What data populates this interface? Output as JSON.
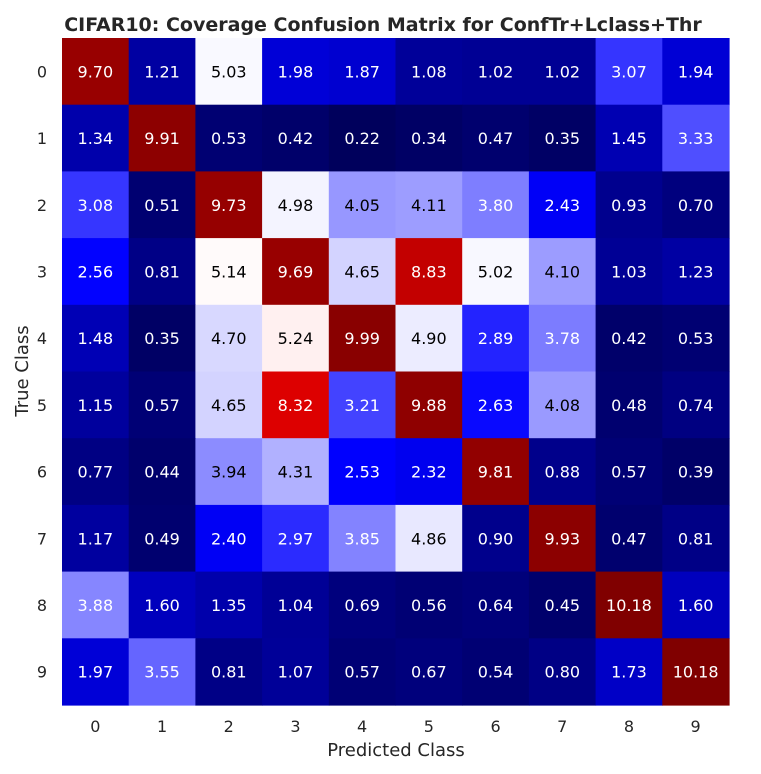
{
  "chart_data": {
    "type": "heatmap",
    "title": "CIFAR10: Coverage Confusion Matrix for ConfTr+Lclass+Thr",
    "xlabel": "Predicted Class",
    "ylabel": "True Class",
    "x_categories": [
      "0",
      "1",
      "2",
      "3",
      "4",
      "5",
      "6",
      "7",
      "8",
      "9"
    ],
    "y_categories": [
      "0",
      "1",
      "2",
      "3",
      "4",
      "5",
      "6",
      "7",
      "8",
      "9"
    ],
    "values": [
      [
        9.7,
        1.21,
        5.03,
        1.98,
        1.87,
        1.08,
        1.02,
        1.02,
        3.07,
        1.94
      ],
      [
        1.34,
        9.91,
        0.53,
        0.42,
        0.22,
        0.34,
        0.47,
        0.35,
        1.45,
        3.33
      ],
      [
        3.08,
        0.51,
        9.73,
        4.98,
        4.05,
        4.11,
        3.8,
        2.43,
        0.93,
        0.7
      ],
      [
        2.56,
        0.81,
        5.14,
        9.69,
        4.65,
        8.83,
        5.02,
        4.1,
        1.03,
        1.23
      ],
      [
        1.48,
        0.35,
        4.7,
        5.24,
        9.99,
        4.9,
        2.89,
        3.78,
        0.42,
        0.53
      ],
      [
        1.15,
        0.57,
        4.65,
        8.32,
        3.21,
        9.88,
        2.63,
        4.08,
        0.48,
        0.74
      ],
      [
        0.77,
        0.44,
        3.94,
        4.31,
        2.53,
        2.32,
        9.81,
        0.88,
        0.57,
        0.39
      ],
      [
        1.17,
        0.49,
        2.4,
        2.97,
        3.85,
        4.86,
        0.9,
        9.93,
        0.47,
        0.81
      ],
      [
        3.88,
        1.6,
        1.35,
        1.04,
        0.69,
        0.56,
        0.64,
        0.45,
        10.18,
        1.6
      ],
      [
        1.97,
        3.55,
        0.81,
        1.07,
        0.57,
        0.67,
        0.54,
        0.8,
        1.73,
        10.18
      ]
    ],
    "value_labels": [
      [
        "9.70",
        "1.21",
        "5.03",
        "1.98",
        "1.87",
        "1.08",
        "1.02",
        "1.02",
        "3.07",
        "1.94"
      ],
      [
        "1.34",
        "9.91",
        "0.53",
        "0.42",
        "0.22",
        "0.34",
        "0.47",
        "0.35",
        "1.45",
        "3.33"
      ],
      [
        "3.08",
        "0.51",
        "9.73",
        "4.98",
        "4.05",
        "4.11",
        "3.80",
        "2.43",
        "0.93",
        "0.70"
      ],
      [
        "2.56",
        "0.81",
        "5.14",
        "9.69",
        "4.65",
        "8.83",
        "5.02",
        "4.10",
        "1.03",
        "1.23"
      ],
      [
        "1.48",
        "0.35",
        "4.70",
        "5.24",
        "9.99",
        "4.90",
        "2.89",
        "3.78",
        "0.42",
        "0.53"
      ],
      [
        "1.15",
        "0.57",
        "4.65",
        "8.32",
        "3.21",
        "9.88",
        "2.63",
        "4.08",
        "0.48",
        "0.74"
      ],
      [
        "0.77",
        "0.44",
        "3.94",
        "4.31",
        "2.53",
        "2.32",
        "9.81",
        "0.88",
        "0.57",
        "0.39"
      ],
      [
        "1.17",
        "0.49",
        "2.40",
        "2.97",
        "3.85",
        "4.86",
        "0.90",
        "9.93",
        "0.47",
        "0.81"
      ],
      [
        "3.88",
        "1.60",
        "1.35",
        "1.04",
        "0.69",
        "0.56",
        "0.64",
        "0.45",
        "10.18",
        "1.60"
      ],
      [
        "1.97",
        "3.55",
        "0.81",
        "1.07",
        "0.57",
        "0.67",
        "0.54",
        "0.80",
        "1.73",
        "10.18"
      ]
    ],
    "colormap": "seismic",
    "value_range": [
      0,
      10.18
    ],
    "colors": {
      "low": "#00004d",
      "mid_low": "#0000ff",
      "center": "#ffffff",
      "mid_high": "#ff0000",
      "high": "#800000",
      "text_dark": "#000000",
      "text_light": "#ffffff"
    },
    "colorbar": false,
    "grid": false
  }
}
